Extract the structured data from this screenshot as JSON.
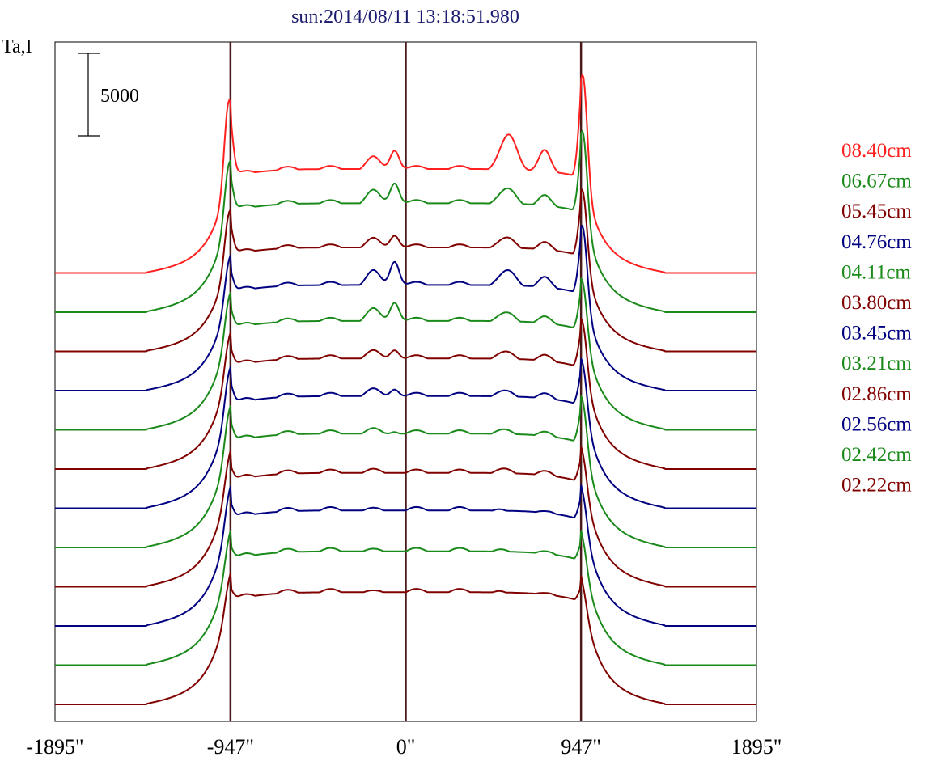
{
  "chart_data": {
    "type": "line",
    "title": "sun:2014/08/11 13:18:51.980",
    "ylabel": "Ta,I",
    "xlabel": "",
    "scale_bar": {
      "label": "5000",
      "value": 5000
    },
    "x_ticks": [
      {
        "value": -1895,
        "label": "-1895\""
      },
      {
        "value": -947,
        "label": "-947\""
      },
      {
        "value": 0,
        "label": "0\""
      },
      {
        "value": 947,
        "label": "947\""
      },
      {
        "value": 1895,
        "label": "1895\""
      }
    ],
    "xlim": [
      -1895,
      1895
    ],
    "vertical_markers": [
      -947,
      0,
      947
    ],
    "colors": {
      "red": "#ff2020",
      "green": "#1a8a1a",
      "maroon": "#800000",
      "blue": "#000080",
      "marker": "#4a1a1a",
      "title": "#1a1a6e"
    },
    "series": [
      {
        "name": "08.40cm",
        "color": "#ff2020",
        "sun_level": 6300,
        "limb_left": 10200,
        "center": 7600,
        "east_peak": 8300,
        "limb_right": 11800
      },
      {
        "name": "06.67cm",
        "color": "#1a8a1a",
        "sun_level": 6600,
        "limb_left": 8700,
        "center": 8000,
        "east_peak": 7400,
        "limb_right": 10700
      },
      {
        "name": "05.45cm",
        "color": "#800000",
        "sun_level": 6300,
        "limb_left": 8100,
        "center": 7200,
        "east_peak": 6800,
        "limb_right": 9500
      },
      {
        "name": "04.76cm",
        "color": "#000080",
        "sun_level": 6400,
        "limb_left": 7600,
        "center": 8000,
        "east_peak": 7200,
        "limb_right": 9700
      },
      {
        "name": "04.11cm",
        "color": "#1a8a1a",
        "sun_level": 6600,
        "limb_left": 7700,
        "center": 7900,
        "east_peak": 7000,
        "limb_right": 8700
      },
      {
        "name": "03.80cm",
        "color": "#800000",
        "sun_level": 6700,
        "limb_left": 7600,
        "center": 7400,
        "east_peak": 7000,
        "limb_right": 8600
      },
      {
        "name": "03.45cm",
        "color": "#000080",
        "sun_level": 6800,
        "limb_left": 7900,
        "center": 7400,
        "east_peak": 7000,
        "limb_right": 8500
      },
      {
        "name": "03.21cm",
        "color": "#1a8a1a",
        "sun_level": 6900,
        "limb_left": 7900,
        "center": 7200,
        "east_peak": 7000,
        "limb_right": 8600
      },
      {
        "name": "02.86cm",
        "color": "#800000",
        "sun_level": 6900,
        "limb_left": 7500,
        "center": 7000,
        "east_peak": 7000,
        "limb_right": 7800
      },
      {
        "name": "02.56cm",
        "color": "#000080",
        "sun_level": 7000,
        "limb_left": 7700,
        "center": 6900,
        "east_peak": 6800,
        "limb_right": 7800
      },
      {
        "name": "02.42cm",
        "color": "#1a8a1a",
        "sun_level": 6900,
        "limb_left": 7400,
        "center": 6800,
        "east_peak": 6800,
        "limb_right": 7400
      },
      {
        "name": "02.22cm",
        "color": "#800000",
        "sun_level": 6800,
        "limb_left": 7200,
        "center": 6600,
        "east_peak": 6600,
        "limb_right": 7000
      }
    ]
  }
}
